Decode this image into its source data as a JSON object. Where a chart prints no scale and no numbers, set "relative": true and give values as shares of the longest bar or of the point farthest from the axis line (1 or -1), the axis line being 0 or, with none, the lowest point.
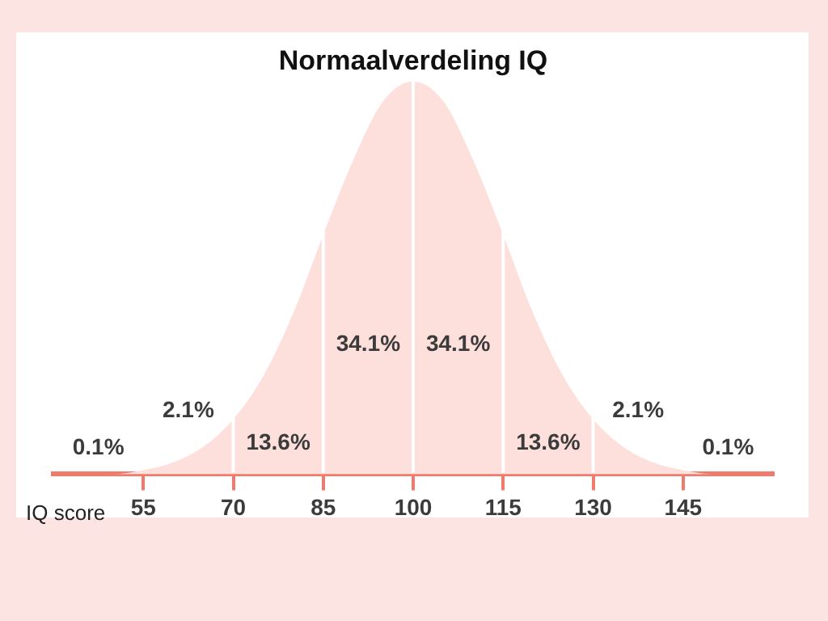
{
  "chart_data": {
    "type": "area",
    "title": "Normaalverdeling IQ",
    "xlabel": "IQ score",
    "relative": true,
    "x": [
      40,
      45,
      50,
      55,
      60,
      65,
      70,
      75,
      80,
      85,
      90,
      95,
      100,
      105,
      110,
      115,
      120,
      125,
      130,
      135,
      140,
      145,
      150,
      155,
      160
    ],
    "series": [
      {
        "color": "#fde0dc",
        "values": [
          0,
          0,
          0,
          0.01,
          0.03,
          0.07,
          0.14,
          0.25,
          0.41,
          0.61,
          0.8,
          0.95,
          1,
          0.95,
          0.8,
          0.61,
          0.41,
          0.25,
          0.14,
          0.07,
          0.03,
          0.01,
          0,
          0,
          0
        ]
      }
    ],
    "xlim": [
      40,
      160
    ],
    "xticks": [
      55,
      70,
      85,
      100,
      115,
      130,
      145
    ],
    "ref_lines": [
      {
        "axis": "x",
        "value": 70,
        "color": "#ffffff"
      },
      {
        "axis": "x",
        "value": 85,
        "color": "#ffffff"
      },
      {
        "axis": "x",
        "value": 100,
        "color": "#ffffff"
      },
      {
        "axis": "x",
        "value": 115,
        "color": "#ffffff"
      },
      {
        "axis": "x",
        "value": 130,
        "color": "#ffffff"
      }
    ],
    "annotations": [
      "0.1%",
      "2.1%",
      "13.6%",
      "34.1%",
      "34.1%",
      "13.6%",
      "2.1%",
      "0.1%"
    ],
    "grid": false,
    "legend": false
  }
}
